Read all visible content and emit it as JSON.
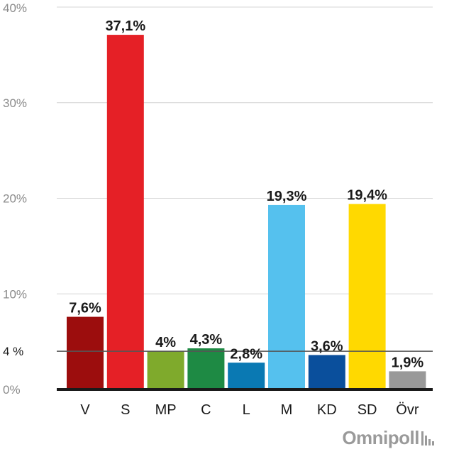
{
  "chart_data": {
    "type": "bar",
    "categories": [
      "V",
      "S",
      "MP",
      "C",
      "L",
      "M",
      "KD",
      "SD",
      "Övr"
    ],
    "values": [
      7.6,
      37.1,
      4,
      4.3,
      2.8,
      19.3,
      3.6,
      19.4,
      1.9
    ],
    "value_labels": [
      "7,6%",
      "37,1%",
      "4%",
      "4,3%",
      "2,8%",
      "19,3%",
      "3,6%",
      "19,4%",
      "1,9%"
    ],
    "colors": [
      "#9c0d0d",
      "#e52026",
      "#7faa2c",
      "#1e8a44",
      "#0a79b3",
      "#55c1ee",
      "#0a4f9c",
      "#ffd900",
      "#999999"
    ],
    "ylim": [
      0,
      40
    ],
    "yticks": [
      0,
      10,
      20,
      30,
      40
    ],
    "ytick_labels": [
      "0%",
      "10%",
      "20%",
      "30%",
      "40%"
    ],
    "threshold": {
      "value": 4,
      "label": "4 %"
    },
    "grid": true,
    "title": "",
    "xlabel": "",
    "ylabel": ""
  },
  "brand": {
    "logo_text": "Omnipoll"
  }
}
